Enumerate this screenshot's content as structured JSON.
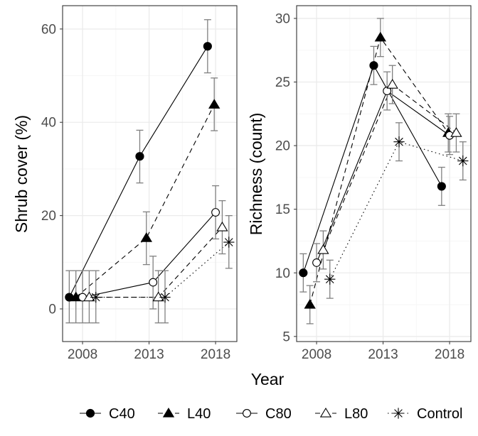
{
  "chart_data": [
    {
      "type": "line",
      "title": "",
      "xlabel": "",
      "ylabel": "Shrub cover (%)",
      "xlim": [
        2006.5,
        2019.6
      ],
      "ylim": [
        -7,
        65
      ],
      "xticks": [
        2008,
        2013,
        2018
      ],
      "yticks": [
        0,
        20,
        40,
        60
      ],
      "grid": true,
      "series": [
        {
          "name": "C40",
          "marker": "filled-circle",
          "linestyle": "solid",
          "points": [
            {
              "x": 2007.0,
              "y": 2.5,
              "lo": -3.0,
              "hi": 8.2
            },
            {
              "x": 2012.3,
              "y": 32.7,
              "lo": 27.0,
              "hi": 38.3
            },
            {
              "x": 2017.4,
              "y": 56.3,
              "lo": 50.6,
              "hi": 62.0
            }
          ]
        },
        {
          "name": "L40",
          "marker": "filled-triangle",
          "linestyle": "dashed",
          "points": [
            {
              "x": 2007.5,
              "y": 2.5,
              "lo": -3.0,
              "hi": 8.2
            },
            {
              "x": 2012.8,
              "y": 15.2,
              "lo": 9.5,
              "hi": 20.8
            },
            {
              "x": 2017.9,
              "y": 43.8,
              "lo": 38.2,
              "hi": 49.5
            }
          ]
        },
        {
          "name": "C80",
          "marker": "open-circle",
          "linestyle": "solid",
          "points": [
            {
              "x": 2008.0,
              "y": 2.5,
              "lo": -3.0,
              "hi": 8.2
            },
            {
              "x": 2013.3,
              "y": 5.7,
              "lo": 0.0,
              "hi": 11.3
            },
            {
              "x": 2018.0,
              "y": 20.7,
              "lo": 15.0,
              "hi": 26.4
            }
          ]
        },
        {
          "name": "L80",
          "marker": "open-triangle",
          "linestyle": "dashed",
          "points": [
            {
              "x": 2008.5,
              "y": 2.5,
              "lo": -3.0,
              "hi": 8.2
            },
            {
              "x": 2013.7,
              "y": 2.5,
              "lo": -3.0,
              "hi": 8.2
            },
            {
              "x": 2018.5,
              "y": 17.5,
              "lo": 11.8,
              "hi": 23.2
            }
          ]
        },
        {
          "name": "Control",
          "marker": "asterisk",
          "linestyle": "dotted",
          "points": [
            {
              "x": 2009.0,
              "y": 2.5,
              "lo": -3.0,
              "hi": 8.2
            },
            {
              "x": 2014.2,
              "y": 2.5,
              "lo": -3.0,
              "hi": 8.2
            },
            {
              "x": 2019.0,
              "y": 14.3,
              "lo": 8.7,
              "hi": 20.0
            }
          ]
        }
      ]
    },
    {
      "type": "line",
      "title": "",
      "xlabel": "",
      "ylabel": "Richness (count)",
      "xlim": [
        2006.5,
        2019.6
      ],
      "ylim": [
        4.6,
        31.0
      ],
      "xticks": [
        2008,
        2013,
        2018
      ],
      "yticks": [
        5,
        10,
        15,
        20,
        25,
        30
      ],
      "grid": true,
      "series": [
        {
          "name": "C40",
          "marker": "filled-circle",
          "linestyle": "solid",
          "points": [
            {
              "x": 2007.0,
              "y": 10.0,
              "lo": 8.5,
              "hi": 11.5
            },
            {
              "x": 2012.3,
              "y": 26.3,
              "lo": 24.8,
              "hi": 27.8
            },
            {
              "x": 2017.4,
              "y": 16.8,
              "lo": 15.3,
              "hi": 18.3
            }
          ]
        },
        {
          "name": "L40",
          "marker": "filled-triangle",
          "linestyle": "dashed",
          "points": [
            {
              "x": 2007.5,
              "y": 7.5,
              "lo": 6.0,
              "hi": 9.0
            },
            {
              "x": 2012.8,
              "y": 28.5,
              "lo": 27.0,
              "hi": 30.0
            },
            {
              "x": 2017.9,
              "y": 21.0,
              "lo": 19.5,
              "hi": 22.5
            }
          ]
        },
        {
          "name": "C80",
          "marker": "open-circle",
          "linestyle": "solid",
          "points": [
            {
              "x": 2008.0,
              "y": 10.8,
              "lo": 9.3,
              "hi": 12.3
            },
            {
              "x": 2013.3,
              "y": 24.3,
              "lo": 22.8,
              "hi": 25.8
            },
            {
              "x": 2018.0,
              "y": 20.8,
              "lo": 19.3,
              "hi": 22.3
            }
          ]
        },
        {
          "name": "L80",
          "marker": "open-triangle",
          "linestyle": "dashed",
          "points": [
            {
              "x": 2008.5,
              "y": 11.8,
              "lo": 10.3,
              "hi": 13.3
            },
            {
              "x": 2013.7,
              "y": 24.8,
              "lo": 23.3,
              "hi": 26.3
            },
            {
              "x": 2018.5,
              "y": 21.0,
              "lo": 19.5,
              "hi": 22.5
            }
          ]
        },
        {
          "name": "Control",
          "marker": "asterisk",
          "linestyle": "dotted",
          "points": [
            {
              "x": 2009.0,
              "y": 9.5,
              "lo": 8.0,
              "hi": 11.0
            },
            {
              "x": 2014.2,
              "y": 20.3,
              "lo": 18.8,
              "hi": 21.8
            },
            {
              "x": 2019.0,
              "y": 18.8,
              "lo": 17.3,
              "hi": 20.3
            }
          ]
        }
      ]
    }
  ],
  "shared": {
    "xlabel": "Year",
    "legend": {
      "position": "bottom",
      "items": [
        {
          "label": "C40",
          "marker": "filled-circle",
          "linestyle": "solid"
        },
        {
          "label": "L40",
          "marker": "filled-triangle",
          "linestyle": "dashed"
        },
        {
          "label": "C80",
          "marker": "open-circle",
          "linestyle": "solid"
        },
        {
          "label": "L80",
          "marker": "open-triangle",
          "linestyle": "dashed"
        },
        {
          "label": "Control",
          "marker": "asterisk",
          "linestyle": "dotted"
        }
      ]
    },
    "colors": {
      "ink": "#000000",
      "errorbar": "#808080",
      "gridMajor": "#ebebeb",
      "gridMinor": "#f5f5f5",
      "panelBorder": "#333333",
      "tick": "#4d4d4d"
    }
  }
}
